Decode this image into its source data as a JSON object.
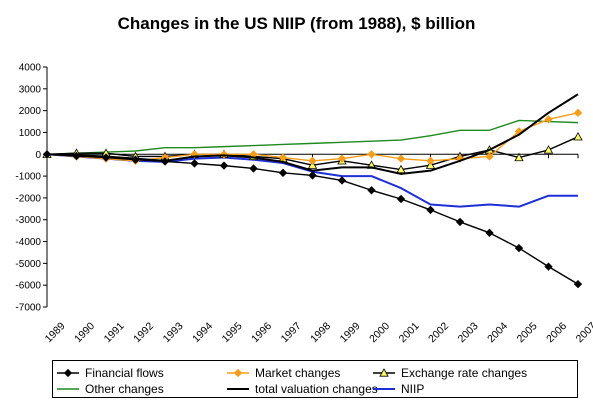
{
  "chart_data": {
    "type": "line",
    "title": "Changes in the US NIIP (from 1988), $ billion",
    "xlabel": "",
    "ylabel": "",
    "ylim": [
      -7000,
      4000
    ],
    "yticks": [
      4000,
      3000,
      2000,
      1000,
      0,
      -1000,
      -2000,
      -3000,
      -4000,
      -5000,
      -6000,
      -7000
    ],
    "grid": false,
    "legend_position": "bottom",
    "categories": [
      "1989",
      "1990",
      "1991",
      "1992",
      "1993",
      "1994",
      "1995",
      "1996",
      "1997",
      "1998",
      "1999",
      "2000",
      "2001",
      "2002",
      "2003",
      "2004",
      "2005",
      "2006",
      "2007"
    ],
    "series": [
      {
        "name": "Financial flows",
        "color": "#000000",
        "marker": "diamond",
        "marker_fill": "#000000",
        "values": [
          0,
          -80,
          -150,
          -250,
          -330,
          -420,
          -520,
          -650,
          -850,
          -970,
          -1200,
          -1650,
          -2050,
          -2550,
          -3100,
          -3600,
          -4300,
          -5150,
          -5950
        ]
      },
      {
        "name": "Market changes",
        "color": "#f59d1b",
        "marker": "diamond",
        "marker_fill": "#f59d1b",
        "values": [
          0,
          -100,
          -200,
          -300,
          -150,
          0,
          0,
          0,
          -150,
          -300,
          -200,
          0,
          -200,
          -300,
          -200,
          -100,
          1050,
          1600,
          1900
        ]
      },
      {
        "name": "Exchange rate changes",
        "color": "#000000",
        "marker": "triangle",
        "marker_fill": "#ffff66",
        "values": [
          0,
          50,
          50,
          -100,
          -100,
          0,
          0,
          -100,
          -200,
          -500,
          -300,
          -500,
          -700,
          -500,
          -100,
          200,
          -150,
          200,
          800
        ]
      },
      {
        "name": "Other changes",
        "color": "#1f8a1f",
        "marker": "none",
        "values": [
          0,
          50,
          100,
          150,
          300,
          300,
          350,
          400,
          450,
          500,
          550,
          600,
          650,
          850,
          1100,
          1100,
          1550,
          1500,
          1450
        ]
      },
      {
        "name": "total valuation changes",
        "color": "#000000",
        "marker": "none",
        "values": [
          0,
          -50,
          -100,
          -200,
          -300,
          -100,
          -50,
          -150,
          -350,
          -750,
          -600,
          -600,
          -900,
          -750,
          -300,
          200,
          900,
          1900,
          2750
        ]
      },
      {
        "name": "NIIP",
        "color": "#1f2fd6",
        "marker": "none",
        "values": [
          0,
          -100,
          -200,
          -300,
          -350,
          -200,
          -150,
          -250,
          -400,
          -800,
          -1000,
          -1000,
          -1550,
          -2300,
          -2400,
          -2300,
          -2400,
          -1900,
          -1900
        ]
      }
    ]
  }
}
